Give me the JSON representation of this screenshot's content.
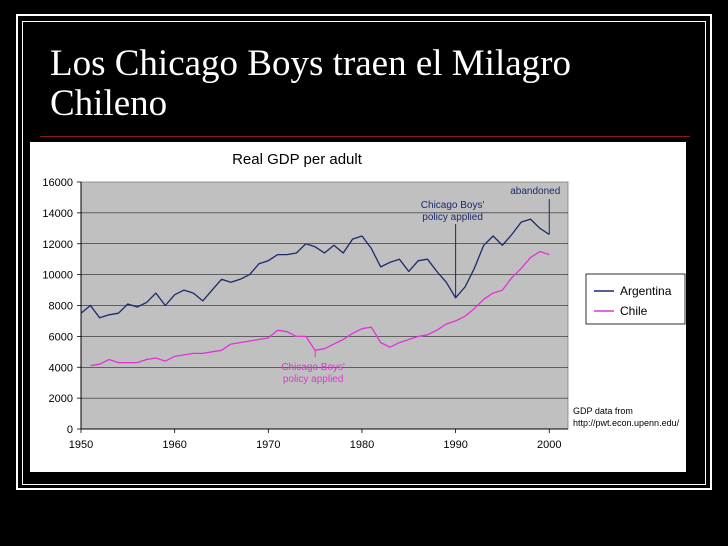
{
  "slide": {
    "title_line1": "Los Chicago Boys traen el Milagro",
    "title_line2": "Chileno"
  },
  "chart_data": {
    "type": "line",
    "title": "Real GDP per adult",
    "xlim": [
      1950,
      2002
    ],
    "ylim": [
      0,
      16000
    ],
    "x_ticks": [
      1950,
      1960,
      1970,
      1980,
      1990,
      2000
    ],
    "y_ticks": [
      0,
      2000,
      4000,
      6000,
      8000,
      10000,
      12000,
      14000,
      16000
    ],
    "grid": true,
    "legend_position": "right",
    "series": [
      {
        "name": "Argentina",
        "color": "#1a2a6c",
        "x": [
          1950,
          1951,
          1952,
          1953,
          1954,
          1955,
          1956,
          1957,
          1958,
          1959,
          1960,
          1961,
          1962,
          1963,
          1964,
          1965,
          1966,
          1967,
          1968,
          1969,
          1970,
          1971,
          1972,
          1973,
          1974,
          1975,
          1976,
          1977,
          1978,
          1979,
          1980,
          1981,
          1982,
          1983,
          1984,
          1985,
          1986,
          1987,
          1988,
          1989,
          1990,
          1991,
          1992,
          1993,
          1994,
          1995,
          1996,
          1997,
          1998,
          1999,
          2000
        ],
        "values": [
          7500,
          8000,
          7200,
          7400,
          7500,
          8100,
          7900,
          8200,
          8800,
          8000,
          8700,
          9000,
          8800,
          8300,
          9000,
          9700,
          9500,
          9700,
          10000,
          10700,
          10900,
          11300,
          11300,
          11400,
          12000,
          11800,
          11400,
          11900,
          11400,
          12300,
          12500,
          11700,
          10500,
          10800,
          11000,
          10200,
          10900,
          11000,
          10200,
          9500,
          8500,
          9200,
          10400,
          11900,
          12500,
          11900,
          12600,
          13400,
          13600,
          13000,
          12600
        ]
      },
      {
        "name": "Chile",
        "color": "#e033d6",
        "x": [
          1951,
          1952,
          1953,
          1954,
          1955,
          1956,
          1957,
          1958,
          1959,
          1960,
          1961,
          1962,
          1963,
          1964,
          1965,
          1966,
          1967,
          1968,
          1969,
          1970,
          1971,
          1972,
          1973,
          1974,
          1975,
          1976,
          1977,
          1978,
          1979,
          1980,
          1981,
          1982,
          1983,
          1984,
          1985,
          1986,
          1987,
          1988,
          1989,
          1990,
          1991,
          1992,
          1993,
          1994,
          1995,
          1996,
          1997,
          1998,
          1999,
          2000
        ],
        "values": [
          4100,
          4200,
          4500,
          4300,
          4300,
          4300,
          4500,
          4600,
          4400,
          4700,
          4800,
          4900,
          4900,
          5000,
          5100,
          5500,
          5600,
          5700,
          5800,
          5900,
          6400,
          6300,
          6000,
          6000,
          5100,
          5200,
          5500,
          5800,
          6200,
          6500,
          6600,
          5600,
          5300,
          5600,
          5800,
          6000,
          6100,
          6400,
          6800,
          7000,
          7300,
          7800,
          8400,
          8800,
          9000,
          9800,
          10400,
          11100,
          11500,
          11300
        ]
      }
    ],
    "annotations": [
      {
        "text_lines": [
          "Chicago Boys'",
          "policy applied"
        ],
        "x": 1990,
        "y": 8500,
        "series": "Argentina"
      },
      {
        "text_lines": [
          "abandoned"
        ],
        "x": 2000,
        "y": 12600,
        "series": "Argentina"
      },
      {
        "text_lines": [
          "Chicago Boys'",
          "policy applied"
        ],
        "x": 1975,
        "y": 5100,
        "series": "Chile"
      }
    ],
    "source_lines": [
      "GDP data from",
      "http://pwt.econ.upenn.edu/"
    ]
  }
}
